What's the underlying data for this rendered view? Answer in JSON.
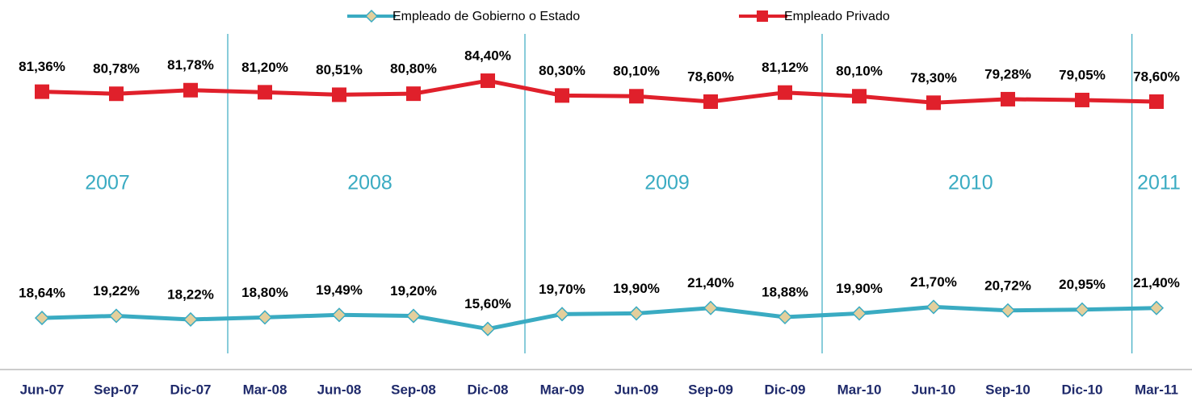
{
  "chart_data": {
    "type": "line",
    "categories": [
      "Jun-07",
      "Sep-07",
      "Dic-07",
      "Mar-08",
      "Jun-08",
      "Sep-08",
      "Dic-08",
      "Mar-09",
      "Jun-09",
      "Sep-09",
      "Dic-09",
      "Mar-10",
      "Jun-10",
      "Sep-10",
      "Dic-10",
      "Mar-11"
    ],
    "series": [
      {
        "name": "Empleado de Gobierno o Estado",
        "color": "#3aabc2",
        "marker_color": "#e3cf9c",
        "values": [
          18.64,
          19.22,
          18.22,
          18.8,
          19.49,
          19.2,
          15.6,
          19.7,
          19.9,
          21.4,
          18.88,
          19.9,
          21.7,
          20.72,
          20.95,
          21.4
        ],
        "value_labels": [
          "18,64%",
          "19,22%",
          "18,22%",
          "18,80%",
          "19,49%",
          "19,20%",
          "15,60%",
          "19,70%",
          "19,90%",
          "21,40%",
          "18,88%",
          "19,90%",
          "21,70%",
          "20,72%",
          "20,95%",
          "21,40%"
        ]
      },
      {
        "name": "Empleado Privado",
        "color": "#e0202b",
        "values": [
          81.36,
          80.78,
          81.78,
          81.2,
          80.51,
          80.8,
          84.4,
          80.3,
          80.1,
          78.6,
          81.12,
          80.1,
          78.3,
          79.28,
          79.05,
          78.6
        ],
        "value_labels": [
          "81,36%",
          "80,78%",
          "81,78%",
          "81,20%",
          "80,51%",
          "80,80%",
          "84,40%",
          "80,30%",
          "80,10%",
          "78,60%",
          "81,12%",
          "80,10%",
          "78,30%",
          "79,28%",
          "79,05%",
          "78,60%"
        ]
      }
    ],
    "ylim": [
      10,
      90
    ],
    "annotations": [
      "2007",
      "2008",
      "2009",
      "2010",
      "2011"
    ],
    "annotation_color": "#3aabc2",
    "legend": "top"
  }
}
